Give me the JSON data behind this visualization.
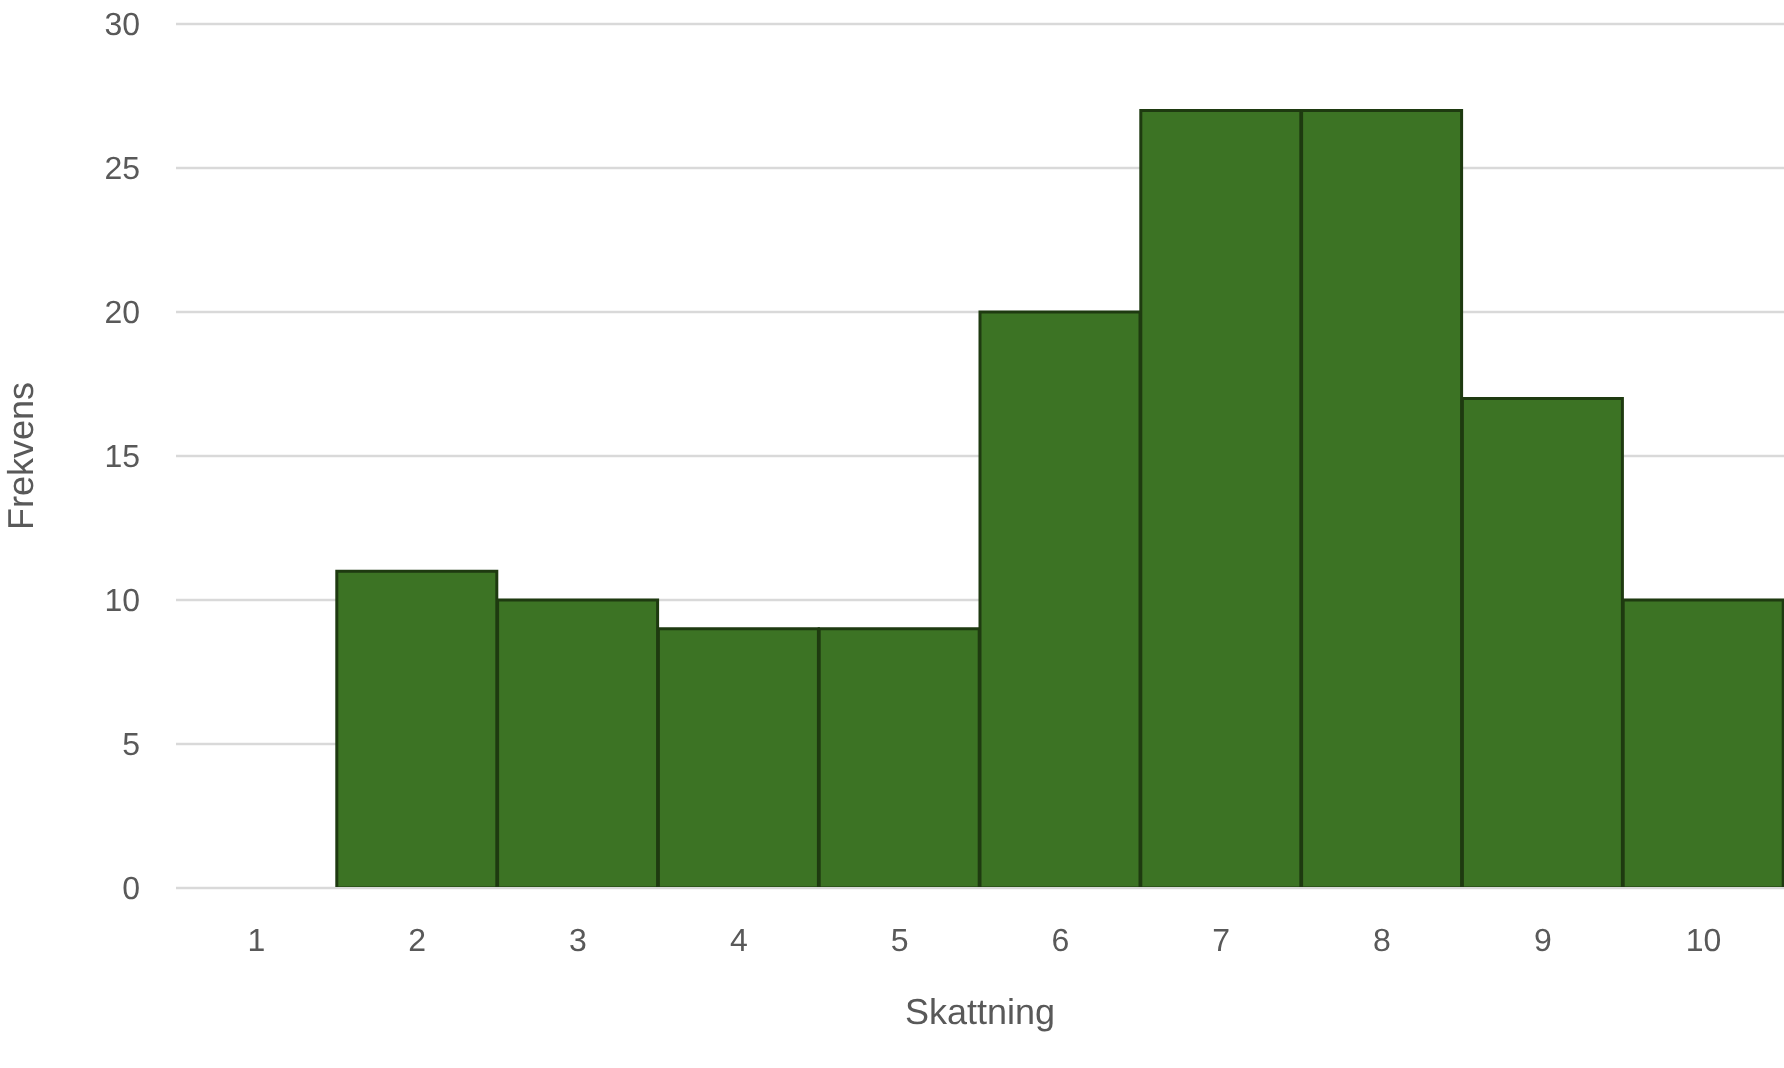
{
  "chart_data": {
    "type": "bar",
    "xlabel": "Skattning",
    "ylabel": "Frekvens",
    "categories": [
      "1",
      "2",
      "3",
      "4",
      "5",
      "6",
      "7",
      "8",
      "9",
      "10"
    ],
    "values": [
      0,
      11,
      10,
      9,
      9,
      20,
      27,
      27,
      17,
      10
    ],
    "color": "#3c7324",
    "ylim": [
      0,
      30
    ],
    "yticks": [
      0,
      5,
      10,
      15,
      20,
      25,
      30
    ],
    "grid": "y"
  }
}
